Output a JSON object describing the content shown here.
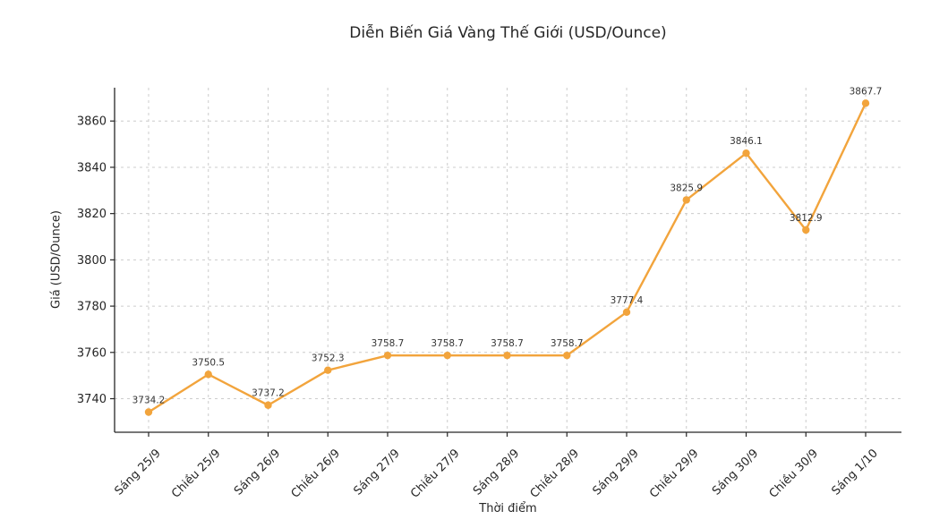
{
  "chart_data": {
    "type": "line",
    "title": "Diễn Biến Giá Vàng Thế Giới (USD/Ounce)",
    "xlabel": "Thời điểm",
    "ylabel": "Giá (USD/Ounce)",
    "categories": [
      "Sáng 25/9",
      "Chiều 25/9",
      "Sáng 26/9",
      "Chiều 26/9",
      "Sáng 27/9",
      "Chiều 27/9",
      "Sáng 28/9",
      "Chiều 28/9",
      "Sáng 29/9",
      "Chiều 29/9",
      "Sáng 30/9",
      "Chiều 30/9",
      "Sáng 1/10"
    ],
    "values": [
      3734.2,
      3750.5,
      3737.2,
      3752.3,
      3758.7,
      3758.7,
      3758.7,
      3758.7,
      3777.4,
      3825.9,
      3846.1,
      3812.9,
      3867.7
    ],
    "yticks": [
      3740,
      3760,
      3780,
      3800,
      3820,
      3840,
      3860
    ],
    "ylim": [
      3725.5,
      3874.4
    ],
    "grid": true,
    "grid_style": "dashed",
    "legend": "none",
    "data_labels": true,
    "line_color": "#F2A43C",
    "text_color": "#262626",
    "grid_color": "#cccccc"
  }
}
